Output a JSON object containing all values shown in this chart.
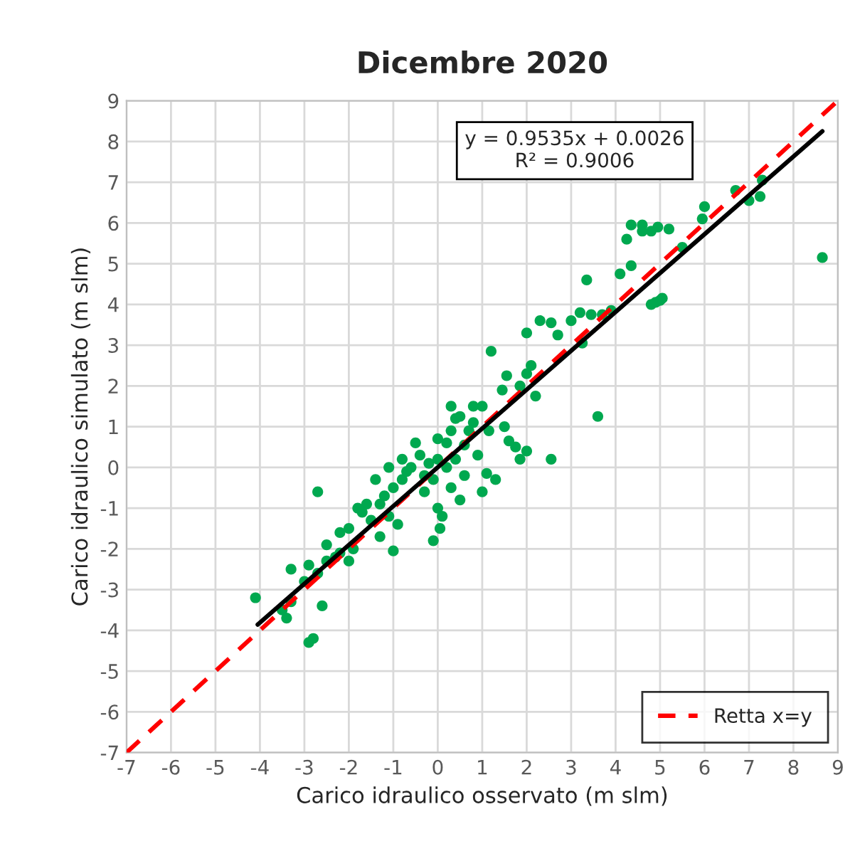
{
  "chart_data": {
    "type": "scatter",
    "title": "Dicembre 2020",
    "xlabel": "Carico idraulico osservato (m slm)",
    "ylabel": "Carico idraulico simulato (m slm)",
    "xlim": [
      -7,
      9
    ],
    "ylim": [
      -7,
      9
    ],
    "xticks": [
      -7,
      -6,
      -5,
      -4,
      -3,
      -2,
      -1,
      0,
      1,
      2,
      3,
      4,
      5,
      6,
      7,
      8,
      9
    ],
    "yticks": [
      -7,
      -6,
      -5,
      -4,
      -3,
      -2,
      -1,
      0,
      1,
      2,
      3,
      4,
      5,
      6,
      7,
      8,
      9
    ],
    "grid": true,
    "legend": "bottom right",
    "annotations": [
      "y = 0.9535x + 0.0026\nR² = 0.9006"
    ],
    "series": [
      {
        "marker": "circle",
        "color": "#00a84f",
        "x": [
          8.65,
          7.3,
          7.25,
          7.0,
          6.7,
          6.0,
          5.95,
          5.5,
          5.2,
          4.95,
          4.8,
          4.6,
          4.35,
          4.25,
          4.35,
          4.6,
          5.0,
          4.9,
          4.8,
          5.05,
          4.1,
          3.9,
          3.7,
          3.45,
          3.35,
          3.2,
          3.0,
          3.25,
          3.6,
          2.55,
          2.2,
          2.0,
          2.3,
          2.55,
          2.7,
          2.1,
          2.0,
          1.85,
          1.55,
          1.2,
          1.45,
          1.0,
          0.8,
          0.5,
          0.3,
          1.15,
          1.5,
          1.6,
          1.75,
          2.0,
          1.85,
          0.6,
          1.1,
          1.0,
          1.3,
          0.2,
          0.0,
          -0.2,
          -0.4,
          -0.6,
          -0.8,
          -1.0,
          -1.2,
          -0.1,
          0.3,
          0.5,
          0.0,
          -0.3,
          0.6,
          0.9,
          0.2,
          -0.5,
          -0.8,
          -1.1,
          -1.4,
          -1.6,
          -1.8,
          -1.5,
          -2.0,
          -2.2,
          -2.5,
          -2.2,
          -1.9,
          -1.3,
          -1.0,
          -0.9,
          0.05,
          -0.1,
          0.1,
          -2.7,
          -2.5,
          -2.7,
          -3.0,
          -2.9,
          -3.3,
          -3.3,
          -3.5,
          -3.4,
          -4.1,
          -2.9,
          -2.8,
          -2.6,
          -2.3,
          -2.0,
          -0.7,
          -0.3,
          0.4,
          0.7,
          0.3,
          -1.3,
          -1.7,
          -1.1,
          0.0,
          0.8,
          0.4
        ],
        "values": [
          5.15,
          7.05,
          6.65,
          6.55,
          6.8,
          6.4,
          6.1,
          5.4,
          5.85,
          5.9,
          5.8,
          5.95,
          5.95,
          5.6,
          4.95,
          5.8,
          4.1,
          4.05,
          4.0,
          4.15,
          4.75,
          3.85,
          3.75,
          3.75,
          4.6,
          3.8,
          3.6,
          3.05,
          1.25,
          0.2,
          1.75,
          3.3,
          3.6,
          3.55,
          3.25,
          2.5,
          2.3,
          2.0,
          2.25,
          2.85,
          1.9,
          1.5,
          1.1,
          1.25,
          1.5,
          0.9,
          1.0,
          0.65,
          0.5,
          0.4,
          0.2,
          0.55,
          -0.15,
          -0.6,
          -0.3,
          0.0,
          0.2,
          0.1,
          0.3,
          0.0,
          -0.3,
          -0.5,
          -0.7,
          -0.3,
          -0.5,
          -0.8,
          -1.0,
          -0.6,
          -0.2,
          0.3,
          0.6,
          0.6,
          0.2,
          0.0,
          -0.3,
          -0.9,
          -1.0,
          -1.3,
          -1.5,
          -1.6,
          -1.9,
          -2.1,
          -2.0,
          -1.7,
          -2.05,
          -1.4,
          -1.5,
          -1.8,
          -1.2,
          -0.6,
          -2.3,
          -2.6,
          -2.8,
          -2.4,
          -2.5,
          -3.3,
          -3.5,
          -3.7,
          -3.2,
          -4.3,
          -4.2,
          -3.4,
          -2.2,
          -2.3,
          -0.1,
          -0.2,
          0.2,
          0.9,
          0.9,
          -0.9,
          -1.1,
          -1.2,
          0.7,
          1.5,
          1.2
        ]
      },
      {
        "type": "line",
        "color": "#ff0000",
        "name": "Retta x=y",
        "line_style": "dashed",
        "marker": "none",
        "x": [
          -7,
          9
        ],
        "values": [
          -7,
          9
        ]
      },
      {
        "type": "line",
        "color": "#000000",
        "line_style": "solid",
        "marker": "none",
        "x": [
          -4.05,
          8.65
        ],
        "values": [
          -3.86,
          8.25
        ]
      }
    ]
  }
}
